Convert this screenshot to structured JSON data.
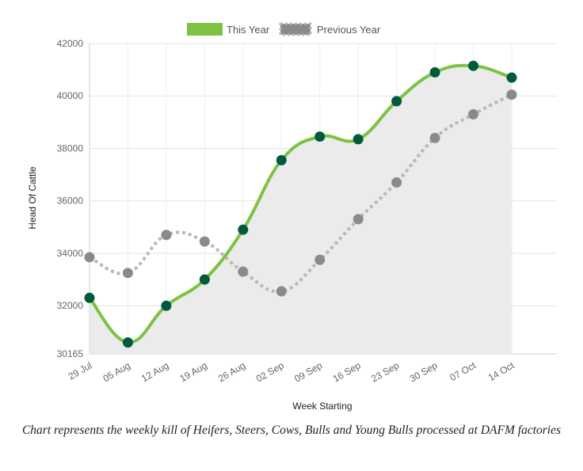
{
  "chart_data": {
    "type": "line",
    "categories": [
      "29 Jul",
      "05 Aug",
      "12 Aug",
      "19 Aug",
      "26 Aug",
      "02 Sep",
      "09 Sep",
      "16 Sep",
      "23 Sep",
      "30 Sep",
      "07 Oct",
      "14 Oct"
    ],
    "series": [
      {
        "name": "This Year",
        "color": "#7dc242",
        "marker_color": "#005a3c",
        "line_style": "solid",
        "fill": "#ebebeb",
        "values": [
          32300,
          30600,
          32000,
          33000,
          34900,
          37550,
          38450,
          38350,
          39800,
          40900,
          41150,
          40700
        ]
      },
      {
        "name": "Previous Year",
        "color": "#b8b8b8",
        "marker_color": "#8a8a8a",
        "line_style": "dotted",
        "values": [
          33850,
          33250,
          34700,
          34450,
          33300,
          32550,
          33750,
          35300,
          36700,
          38400,
          39300,
          40050
        ]
      }
    ],
    "xlabel": "Week Starting",
    "ylabel": "Head Of Cattle",
    "ylim": [
      30165,
      42000
    ],
    "yticks": [
      "30165",
      "32000",
      "34000",
      "36000",
      "38000",
      "40000",
      "42000"
    ],
    "ytick_values": [
      30165,
      32000,
      34000,
      36000,
      38000,
      40000,
      42000
    ],
    "grid": true,
    "legend_position": "top-center"
  },
  "caption": "Chart represents the weekly kill of Heifers, Steers, Cows, Bulls and Young Bulls processed at DAFM factories"
}
